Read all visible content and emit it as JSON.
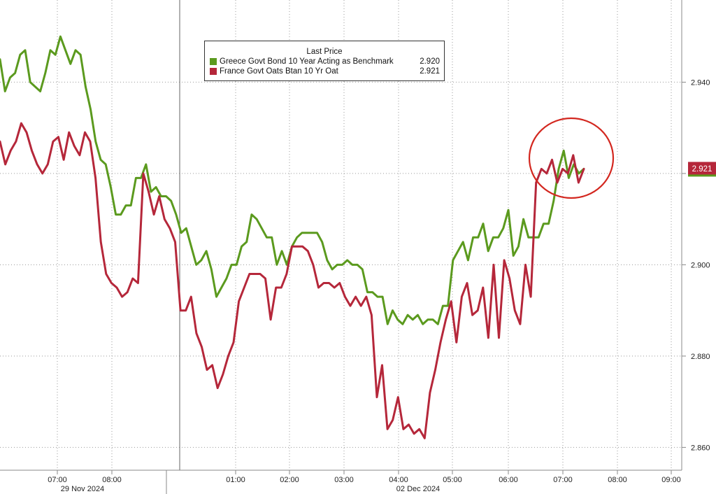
{
  "chart_data": {
    "type": "line",
    "title": "",
    "xlabel": "",
    "ylabel": "",
    "legend_title": "Last Price",
    "legend_position": "top-center",
    "grid": true,
    "ylim": [
      2.855,
      2.958
    ],
    "y_ticks": [
      "2.860",
      "2.880",
      "2.900",
      "2.920",
      "2.940"
    ],
    "x_ticks": [
      "07:00",
      "08:00",
      "01:00",
      "02:00",
      "03:00",
      "04:00",
      "05:00",
      "06:00",
      "07:00",
      "08:00",
      "09:00"
    ],
    "date_labels": [
      "29 Nov 2024",
      "02 Dec 2024"
    ],
    "current_value_label": "2.921",
    "annotation": "red circle highlighting latest prices",
    "series": [
      {
        "name": "Greece Govt Bond 10 Year Acting as Benchmark",
        "last": "2.920",
        "color": "#5b9a1e",
        "values": [
          2.945,
          2.938,
          2.941,
          2.942,
          2.946,
          2.947,
          2.94,
          2.939,
          2.938,
          2.942,
          2.947,
          2.946,
          2.95,
          2.947,
          2.944,
          2.947,
          2.946,
          2.939,
          2.934,
          2.927,
          2.923,
          2.922,
          2.917,
          2.911,
          2.911,
          2.913,
          2.913,
          2.919,
          2.919,
          2.922,
          2.916,
          2.917,
          2.915,
          2.915,
          2.914,
          2.911,
          2.907,
          2.908,
          2.904,
          2.9,
          2.901,
          2.903,
          2.899,
          2.893,
          2.895,
          2.897,
          2.9,
          2.9,
          2.904,
          2.905,
          2.911,
          2.91,
          2.908,
          2.906,
          2.906,
          2.9,
          2.903,
          2.9,
          2.904,
          2.906,
          2.907,
          2.907,
          2.907,
          2.907,
          2.905,
          2.901,
          2.899,
          2.9,
          2.9,
          2.901,
          2.9,
          2.9,
          2.899,
          2.894,
          2.894,
          2.893,
          2.893,
          2.887,
          2.89,
          2.888,
          2.887,
          2.889,
          2.888,
          2.889,
          2.887,
          2.888,
          2.888,
          2.887,
          2.891,
          2.891,
          2.901,
          2.903,
          2.905,
          2.901,
          2.906,
          2.906,
          2.909,
          2.903,
          2.906,
          2.906,
          2.908,
          2.912,
          2.902,
          2.904,
          2.91,
          2.906,
          2.906,
          2.906,
          2.909,
          2.909,
          2.914,
          2.921,
          2.925,
          2.919,
          2.922,
          2.92,
          2.921
        ]
      },
      {
        "name": "France Govt Oats Btan 10 Yr Oat",
        "last": "2.921",
        "color": "#b5273a",
        "values": [
          2.927,
          2.922,
          2.925,
          2.927,
          2.931,
          2.929,
          2.925,
          2.922,
          2.92,
          2.922,
          2.927,
          2.928,
          2.923,
          2.929,
          2.926,
          2.924,
          2.929,
          2.927,
          2.919,
          2.905,
          2.898,
          2.896,
          2.895,
          2.893,
          2.894,
          2.897,
          2.896,
          2.92,
          2.916,
          2.911,
          2.915,
          2.91,
          2.908,
          2.905,
          2.89,
          2.89,
          2.893,
          2.885,
          2.882,
          2.877,
          2.878,
          2.873,
          2.876,
          2.88,
          2.883,
          2.892,
          2.895,
          2.898,
          2.898,
          2.898,
          2.897,
          2.888,
          2.895,
          2.895,
          2.898,
          2.904,
          2.904,
          2.904,
          2.903,
          2.9,
          2.895,
          2.896,
          2.896,
          2.895,
          2.896,
          2.893,
          2.891,
          2.893,
          2.891,
          2.893,
          2.889,
          2.871,
          2.878,
          2.864,
          2.866,
          2.871,
          2.864,
          2.865,
          2.863,
          2.864,
          2.862,
          2.872,
          2.877,
          2.883,
          2.888,
          2.892,
          2.883,
          2.893,
          2.896,
          2.889,
          2.89,
          2.895,
          2.884,
          2.9,
          2.884,
          2.901,
          2.897,
          2.89,
          2.887,
          2.9,
          2.893,
          2.918,
          2.921,
          2.92,
          2.923,
          2.918,
          2.921,
          2.92,
          2.924,
          2.918,
          2.921
        ]
      }
    ]
  }
}
